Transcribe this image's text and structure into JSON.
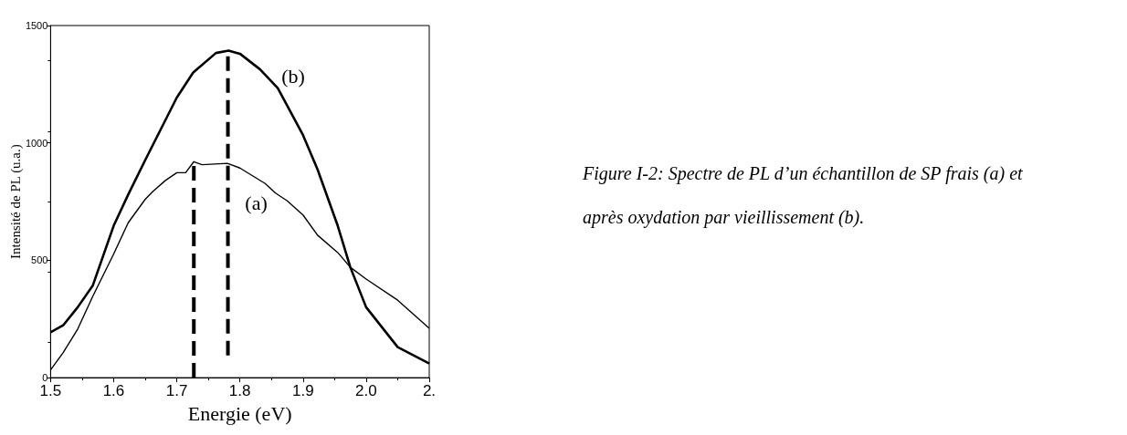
{
  "chart_data": {
    "type": "line",
    "xlabel": "Energie (eV)",
    "ylabel": "Intensité de PL (u.a.)",
    "xlim": [
      1.5,
      2.1
    ],
    "ylim": [
      0,
      1500
    ],
    "xticks": [
      1.5,
      1.6,
      1.7,
      1.8,
      1.9,
      {
        "value": 2,
        "label": "2.0"
      },
      {
        "value": 2.1,
        "label": "2."
      }
    ],
    "yticks": [
      0,
      500,
      1000,
      1500
    ],
    "grid": false,
    "marker": "none",
    "line_style": "solid",
    "series": [
      {
        "name": "(b)",
        "color": "#000000",
        "x": [
          1.5,
          1.52,
          1.543,
          1.567,
          1.6,
          1.623,
          1.65,
          1.7,
          1.726,
          1.762,
          1.782,
          1.8,
          1.832,
          1.86,
          1.9,
          1.923,
          1.955,
          1.975,
          2.0,
          2.05,
          2.1
        ],
        "values": [
          193,
          223,
          300,
          393,
          647,
          780,
          927,
          1193,
          1300,
          1383,
          1393,
          1380,
          1313,
          1233,
          1033,
          887,
          647,
          470,
          300,
          130,
          60
        ]
      },
      {
        "name": "(a)",
        "color": "#000000",
        "x": [
          1.5,
          1.52,
          1.543,
          1.567,
          1.6,
          1.623,
          1.65,
          1.662,
          1.682,
          1.7,
          1.714,
          1.727,
          1.74,
          1.78,
          1.8,
          1.82,
          1.84,
          1.856,
          1.875,
          1.9,
          1.923,
          1.955,
          1.975,
          2.0,
          2.05,
          2.1
        ],
        "values": [
          33,
          107,
          207,
          347,
          527,
          660,
          760,
          793,
          840,
          873,
          873,
          920,
          907,
          913,
          893,
          860,
          827,
          787,
          753,
          693,
          607,
          533,
          470,
          420,
          330,
          210
        ]
      },
      {
        "color": "#000000",
        "line_style": "dashed",
        "x": [
          1.727,
          1.727
        ],
        "values": [
          0,
          920
        ]
      },
      {
        "color": "#000000",
        "line_style": "dashed",
        "x": [
          1.781,
          1.781
        ],
        "values": [
          95,
          1393
        ]
      }
    ],
    "annotations": [
      "Figure I-2: Spectre de PL d’un échantillon de SP frais (a) et après oxydation par vieillissement (b)."
    ]
  }
}
